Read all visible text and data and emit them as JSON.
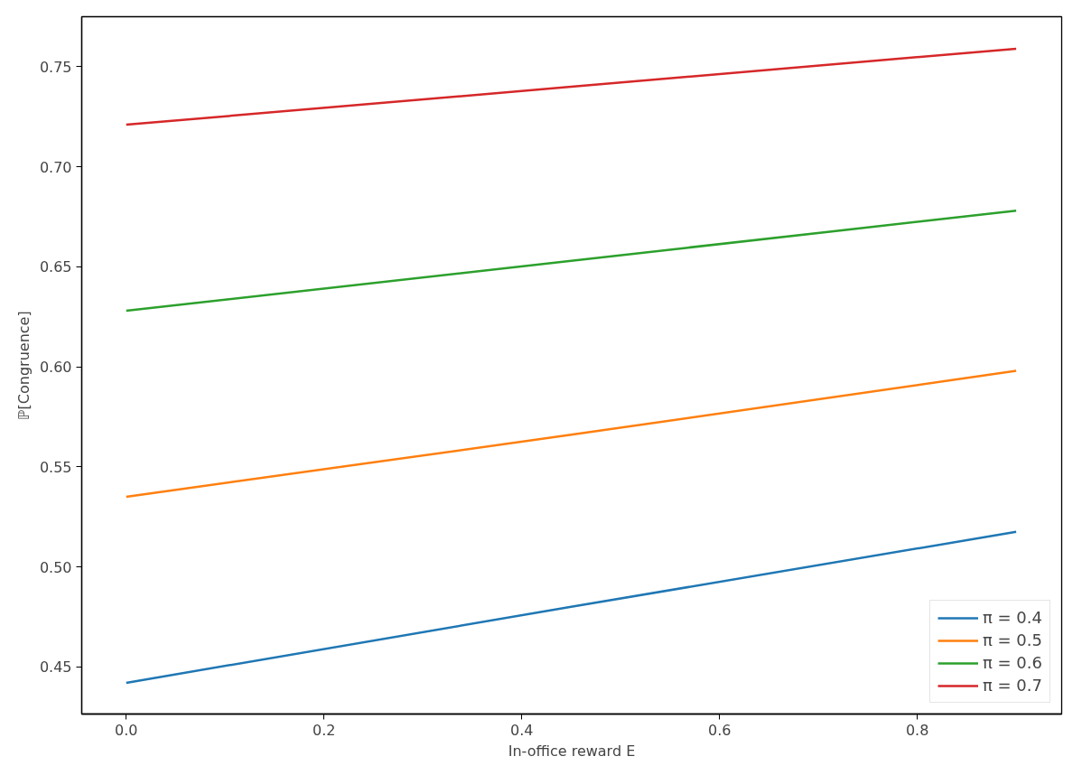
{
  "chart_data": {
    "type": "line",
    "xlabel": "In-office reward E",
    "ylabel": "ℙ[Congruence]",
    "x": [
      0,
      0.45,
      0.9
    ],
    "series": [
      {
        "name": "π = 0.4",
        "color": "#1f77b4",
        "values": [
          0.442,
          0.48,
          0.5175
        ]
      },
      {
        "name": "π = 0.5",
        "color": "#ff7f0e",
        "values": [
          0.535,
          0.566,
          0.598
        ]
      },
      {
        "name": "π = 0.6",
        "color": "#2ca02c",
        "values": [
          0.628,
          0.653,
          0.678
        ]
      },
      {
        "name": "π = 0.7",
        "color": "#d62728",
        "values": [
          0.721,
          0.74,
          0.759
        ]
      }
    ],
    "xlim": [
      -0.045,
      0.946
    ],
    "ylim": [
      0.4264,
      0.775
    ],
    "xticks": [
      {
        "value": 0,
        "label": "0.0"
      },
      0.2,
      0.4,
      0.6,
      0.8
    ],
    "yticks": [
      0.45,
      {
        "value": 0.5,
        "label": "0.50"
      },
      0.55,
      {
        "value": 0.6,
        "label": "0.60"
      },
      0.65,
      {
        "value": 0.7,
        "label": "0.70"
      },
      0.75
    ],
    "grid": false,
    "legend": "bottom right",
    "line_style": "solid",
    "marker": "none"
  }
}
